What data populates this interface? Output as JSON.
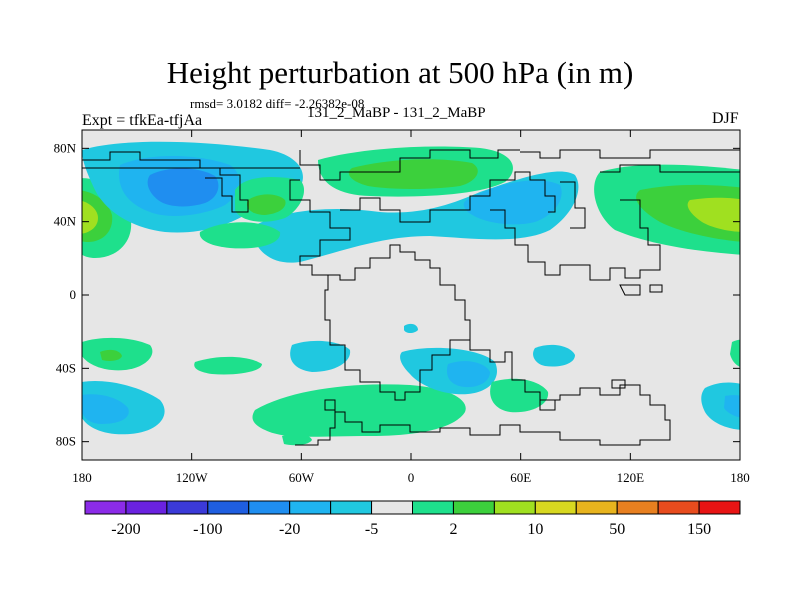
{
  "header": {
    "title": "Height perturbation at 500 hPa (in m)",
    "stats": "rmsd= 3.0182 diff= -2.26382e-08",
    "experiment": "Expt = tfkEa-tfjAa",
    "runs": "131_2_MaBP - 131_2_MaBP",
    "season": "DJF"
  },
  "map": {
    "lat_ticks": [
      {
        "value": 80,
        "label": "80N"
      },
      {
        "value": 40,
        "label": "40N"
      },
      {
        "value": 0,
        "label": "0"
      },
      {
        "value": -40,
        "label": "40S"
      },
      {
        "value": -80,
        "label": "80S"
      }
    ],
    "lon_ticks": [
      {
        "value": -180,
        "label": "180"
      },
      {
        "value": -120,
        "label": "120W"
      },
      {
        "value": -60,
        "label": "60W"
      },
      {
        "value": 0,
        "label": "0"
      },
      {
        "value": 60,
        "label": "60E"
      },
      {
        "value": 120,
        "label": "120E"
      },
      {
        "value": 180,
        "label": "180"
      }
    ],
    "background_color": "#e6e6e6"
  },
  "colorbar": {
    "colors": [
      "#8b2be8",
      "#6a22e0",
      "#3b3ad8",
      "#1f5ee0",
      "#1f8ef0",
      "#1fb4f0",
      "#20c8e0",
      "#e6e6e6",
      "#1ee08c",
      "#3cd03c",
      "#a0e020",
      "#d8d820",
      "#e8b41e",
      "#e88020",
      "#e84c1e",
      "#e81414"
    ],
    "labels": [
      {
        "after_box": 1,
        "text": "-200"
      },
      {
        "after_box": 3,
        "text": "-100"
      },
      {
        "after_box": 5,
        "text": "-20"
      },
      {
        "after_box": 7,
        "text": "-5"
      },
      {
        "after_box": 9,
        "text": "2"
      },
      {
        "after_box": 11,
        "text": "10"
      },
      {
        "after_box": 13,
        "text": "50"
      },
      {
        "after_box": 15,
        "text": "150"
      }
    ]
  }
}
